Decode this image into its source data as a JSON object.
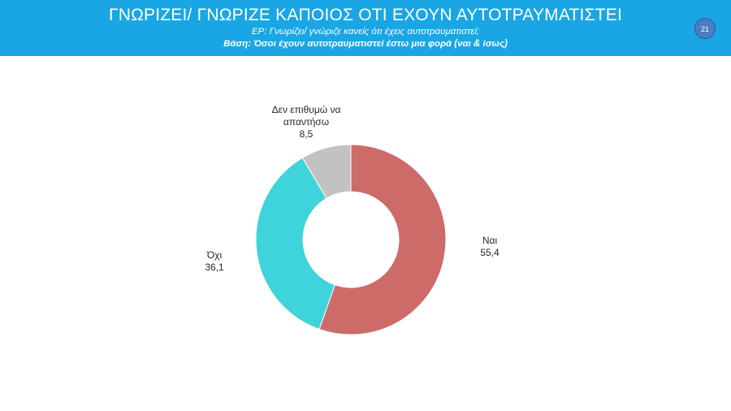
{
  "header": {
    "title": "ΓΝΩΡΙΖΕΙ/ ΓΝΩΡΙΖΕ ΚΑΠΟΙΟΣ ΟΤΙ ΕΧΟΥΝ ΑΥΤΟΤΡΑΥΜΑΤΙΣΤΕΙ",
    "question": "ΕΡ: Γνωρίζει/ γνώριζε κανείς ότι έχεις αυτοτραυματιστεί;",
    "base": "Βάση: Όσοι έχουν αυτοτραυματιστεί έστω μια φορά (ναι & ίσως)",
    "page_number": "21"
  },
  "chart_data": {
    "type": "pie",
    "donut": true,
    "start_angle": "top",
    "direction": "clockwise",
    "slices": [
      {
        "label": "Ναι",
        "label_lines": [
          "Ναι"
        ],
        "value": 55.4,
        "value_label": "55,4",
        "color": "#cd6b68"
      },
      {
        "label": "Όχι",
        "label_lines": [
          "Όχι"
        ],
        "value": 36.1,
        "value_label": "36,1",
        "color": "#3fd3dc"
      },
      {
        "label": "Δεν επιθυμώ να απαντήσω",
        "label_lines": [
          "Δεν επιθυμώ να",
          "απαντήσω"
        ],
        "value": 8.5,
        "value_label": "8,5",
        "color": "#c2c2c2"
      }
    ]
  }
}
